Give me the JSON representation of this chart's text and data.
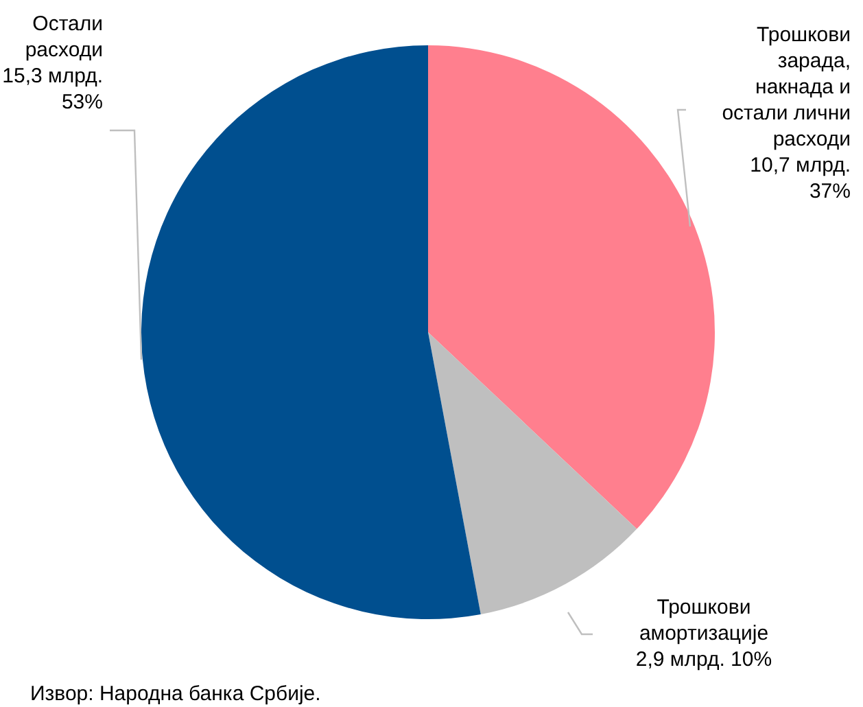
{
  "chart_data": {
    "type": "pie",
    "categories": [
      "Трошкови зарада, накнада и остали лични расходи",
      "Трошкови амортизације",
      "Остали расходи"
    ],
    "values": [
      10.7,
      2.9,
      15.3
    ],
    "value_labels": [
      "10,7 млрд. 37%",
      "2,9 млрд. 10%",
      "15,3 млрд. 53%"
    ],
    "colors": [
      "#ff7f8e",
      "#bfbfbf",
      "#004f8f"
    ],
    "annotations": [
      "Извор: Народна банка Србије."
    ],
    "legend": false
  }
}
